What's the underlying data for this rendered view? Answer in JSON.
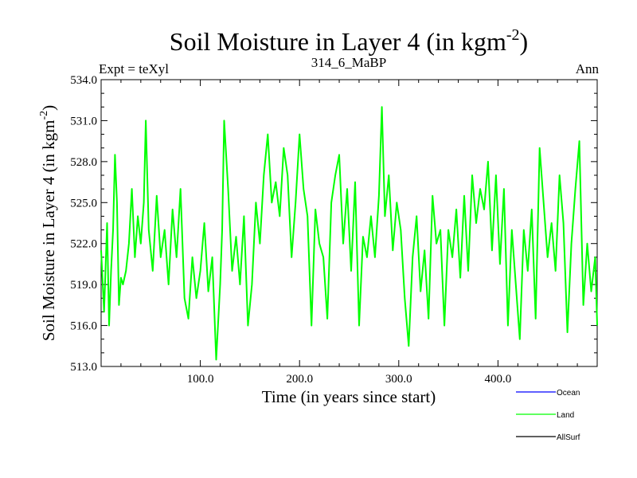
{
  "chart_data": {
    "type": "line",
    "title": "Soil Moisture in Layer 4 (in kgm",
    "title_sup": "-2",
    "title_close": ")",
    "header_left": "Expt = teXyl",
    "header_center": "314_6_MaBP",
    "header_right": "Ann",
    "xlabel": "Time (in years since start)",
    "ylabel": "Soil Moisture in Layer 4 (in kgm",
    "ylabel_sup": "-2",
    "ylabel_close": ")",
    "xlim": [
      0,
      500
    ],
    "ylim": [
      513,
      534
    ],
    "xticks": [
      100,
      200,
      300,
      400
    ],
    "xtick_labels": [
      "100.0",
      "200.0",
      "300.0",
      "400.0"
    ],
    "yticks": [
      513,
      516,
      519,
      522,
      525,
      528,
      531,
      534
    ],
    "ytick_labels": [
      "513.0",
      "516.0",
      "519.0",
      "522.0",
      "525.0",
      "528.0",
      "531.0",
      "534.0"
    ],
    "legend_placement": "bottom-right",
    "series": [
      {
        "name": "Ocean",
        "color": "#0000ff",
        "x": [],
        "y": []
      },
      {
        "name": "Land",
        "color": "#00ff00",
        "x": [
          0,
          3,
          6,
          8,
          10,
          12,
          14,
          16,
          18,
          20,
          22,
          25,
          28,
          31,
          34,
          37,
          40,
          43,
          45,
          48,
          52,
          56,
          60,
          64,
          68,
          72,
          76,
          80,
          84,
          88,
          92,
          96,
          100,
          104,
          108,
          112,
          116,
          120,
          122,
          124,
          128,
          132,
          136,
          140,
          144,
          148,
          152,
          156,
          160,
          164,
          168,
          172,
          176,
          180,
          184,
          188,
          192,
          196,
          200,
          204,
          208,
          212,
          216,
          220,
          224,
          228,
          232,
          236,
          240,
          244,
          248,
          252,
          256,
          260,
          264,
          268,
          272,
          276,
          280,
          283,
          286,
          290,
          294,
          298,
          302,
          306,
          310,
          314,
          318,
          322,
          326,
          330,
          334,
          338,
          342,
          346,
          350,
          354,
          358,
          362,
          366,
          370,
          374,
          378,
          382,
          386,
          390,
          394,
          398,
          402,
          406,
          410,
          414,
          418,
          422,
          426,
          430,
          434,
          438,
          442,
          446,
          450,
          454,
          458,
          462,
          466,
          470,
          474,
          478,
          482,
          486,
          490,
          494,
          498,
          500
        ],
        "y": [
          521.5,
          517.0,
          523.5,
          516.0,
          520.0,
          523.0,
          528.5,
          525.0,
          517.5,
          519.5,
          519.0,
          520.0,
          522.0,
          526.0,
          521.0,
          524.0,
          522.0,
          525.0,
          531.0,
          523.0,
          520.0,
          525.5,
          521.0,
          523.0,
          519.0,
          524.5,
          521.0,
          526.0,
          518.0,
          516.5,
          521.0,
          518.0,
          520.0,
          523.5,
          518.5,
          521.0,
          513.5,
          519.0,
          523.0,
          531.0,
          526.0,
          520.0,
          522.5,
          519.0,
          524.0,
          516.0,
          519.0,
          525.0,
          522.0,
          527.0,
          530.0,
          525.0,
          526.5,
          524.0,
          529.0,
          527.0,
          521.0,
          525.0,
          530.0,
          526.0,
          524.0,
          516.0,
          524.5,
          522.0,
          521.0,
          516.5,
          525.0,
          527.0,
          528.5,
          522.0,
          526.0,
          520.0,
          526.5,
          516.0,
          522.5,
          521.0,
          524.0,
          521.0,
          525.5,
          532.0,
          524.0,
          527.0,
          521.5,
          525.0,
          523.0,
          518.0,
          514.5,
          521.0,
          524.0,
          518.5,
          521.5,
          516.5,
          525.5,
          522.0,
          523.0,
          516.0,
          523.0,
          521.0,
          524.5,
          519.5,
          525.5,
          520.0,
          527.0,
          523.5,
          526.0,
          524.5,
          528.0,
          521.5,
          527.0,
          520.5,
          526.0,
          516.0,
          523.0,
          519.0,
          515.0,
          523.0,
          520.0,
          524.5,
          516.5,
          529.0,
          525.0,
          521.0,
          523.5,
          520.0,
          527.0,
          523.5,
          515.5,
          522.0,
          526.0,
          529.5,
          517.5,
          522.0,
          518.5,
          521.0,
          516.0
        ]
      },
      {
        "name": "AllSurf",
        "color": "#000000",
        "x": [],
        "y": []
      }
    ]
  }
}
